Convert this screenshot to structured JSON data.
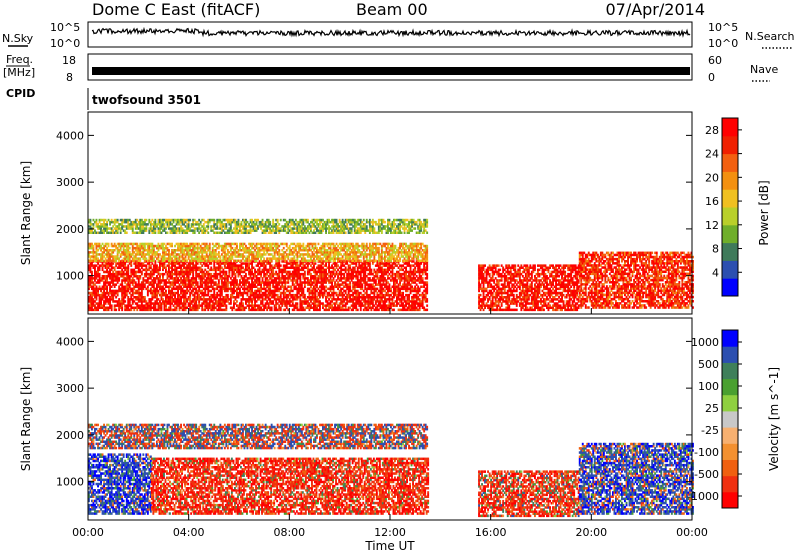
{
  "header": {
    "station": "Dome C East (fitACF)",
    "beam": "Beam 00",
    "date": "07/Apr/2014"
  },
  "strip_labels": {
    "nsky": "N.Sky",
    "nsky_top": "10^5",
    "nsky_bottom": "10^0",
    "nsky_right_top": "10^5",
    "nsky_right_bottom": "10^0",
    "nsearch": "N.Search",
    "freq_line1": "Freq.",
    "freq_line2": "[MHz]",
    "freq_top": "18",
    "freq_bottom": "8",
    "nave_top": "60",
    "nave_bottom": "0",
    "nave": "Nave",
    "cpid": "CPID",
    "program": "twofsound 3501"
  },
  "axes": {
    "ylabel": "Slant Range [km]",
    "xlabel": "Time UT",
    "power_label": "Power [dB]",
    "velocity_label": "Velocity [m s^-1]"
  },
  "colors": {
    "power_scale": [
      "#0000ff",
      "#2c4fb0",
      "#3f7a5a",
      "#6fae2a",
      "#b9cf2a",
      "#f0c020",
      "#f39010",
      "#f36010",
      "#f02000",
      "#ff0000"
    ],
    "velocity_scale": [
      "#ff0000",
      "#f03010",
      "#f06010",
      "#f39030",
      "#f7b070",
      "#c8c8c8",
      "#8fd040",
      "#4aa030",
      "#3f7f5a",
      "#2c4fb0",
      "#0000ff"
    ]
  },
  "chart_data": [
    {
      "type": "heatmap",
      "title": "Power",
      "xlabel": "Time UT",
      "ylabel": "Slant Range [km]",
      "x_ticks": [
        "00:00",
        "04:00",
        "08:00",
        "12:00",
        "16:00",
        "20:00",
        "00:00"
      ],
      "x_range_hours": [
        0,
        24
      ],
      "y_range_km": [
        180,
        4500
      ],
      "y_ticks": [
        1000,
        2000,
        3000,
        4000
      ],
      "colorbar": {
        "label": "Power [dB]",
        "ticks": [
          4,
          8,
          12,
          16,
          20,
          24,
          28
        ],
        "range": [
          0,
          30
        ]
      },
      "scatter_bands": [
        {
          "t_start": 0,
          "t_end": 13.5,
          "r_low": 250,
          "r_high": 1300,
          "value": 28
        },
        {
          "t_start": 0,
          "t_end": 13.5,
          "r_low": 1300,
          "r_high": 1700,
          "value": 18
        },
        {
          "t_start": 0,
          "t_end": 13.5,
          "r_low": 1900,
          "r_high": 2200,
          "value": 12
        },
        {
          "t_start": 15.5,
          "t_end": 19.5,
          "r_low": 250,
          "r_high": 1200,
          "value": 28
        },
        {
          "t_start": 19.5,
          "t_end": 24,
          "r_low": 300,
          "r_high": 1500,
          "value": 26
        }
      ]
    },
    {
      "type": "heatmap",
      "title": "Velocity",
      "xlabel": "Time UT",
      "ylabel": "Slant Range [km]",
      "x_ticks": [
        "00:00",
        "04:00",
        "08:00",
        "12:00",
        "16:00",
        "20:00",
        "00:00"
      ],
      "x_range_hours": [
        0,
        24
      ],
      "y_range_km": [
        180,
        4500
      ],
      "y_ticks": [
        1000,
        2000,
        3000,
        4000
      ],
      "colorbar": {
        "label": "Velocity [m s^-1]",
        "ticks": [
          1000,
          500,
          100,
          25,
          -25,
          -100,
          -500,
          -1000
        ]
      },
      "scatter_bands": [
        {
          "t_start": 0,
          "t_end": 2.5,
          "r_low": 300,
          "r_high": 1600,
          "value": 200
        },
        {
          "t_start": 2.5,
          "t_end": 13.5,
          "r_low": 300,
          "r_high": 1500,
          "value": -200
        },
        {
          "t_start": 0,
          "t_end": 13.5,
          "r_low": 1700,
          "r_high": 2200,
          "value": 0
        },
        {
          "t_start": 15.5,
          "t_end": 19.5,
          "r_low": 250,
          "r_high": 1200,
          "value": -150
        },
        {
          "t_start": 19.5,
          "t_end": 24,
          "r_low": 300,
          "r_high": 1800,
          "value": 150
        }
      ]
    }
  ]
}
